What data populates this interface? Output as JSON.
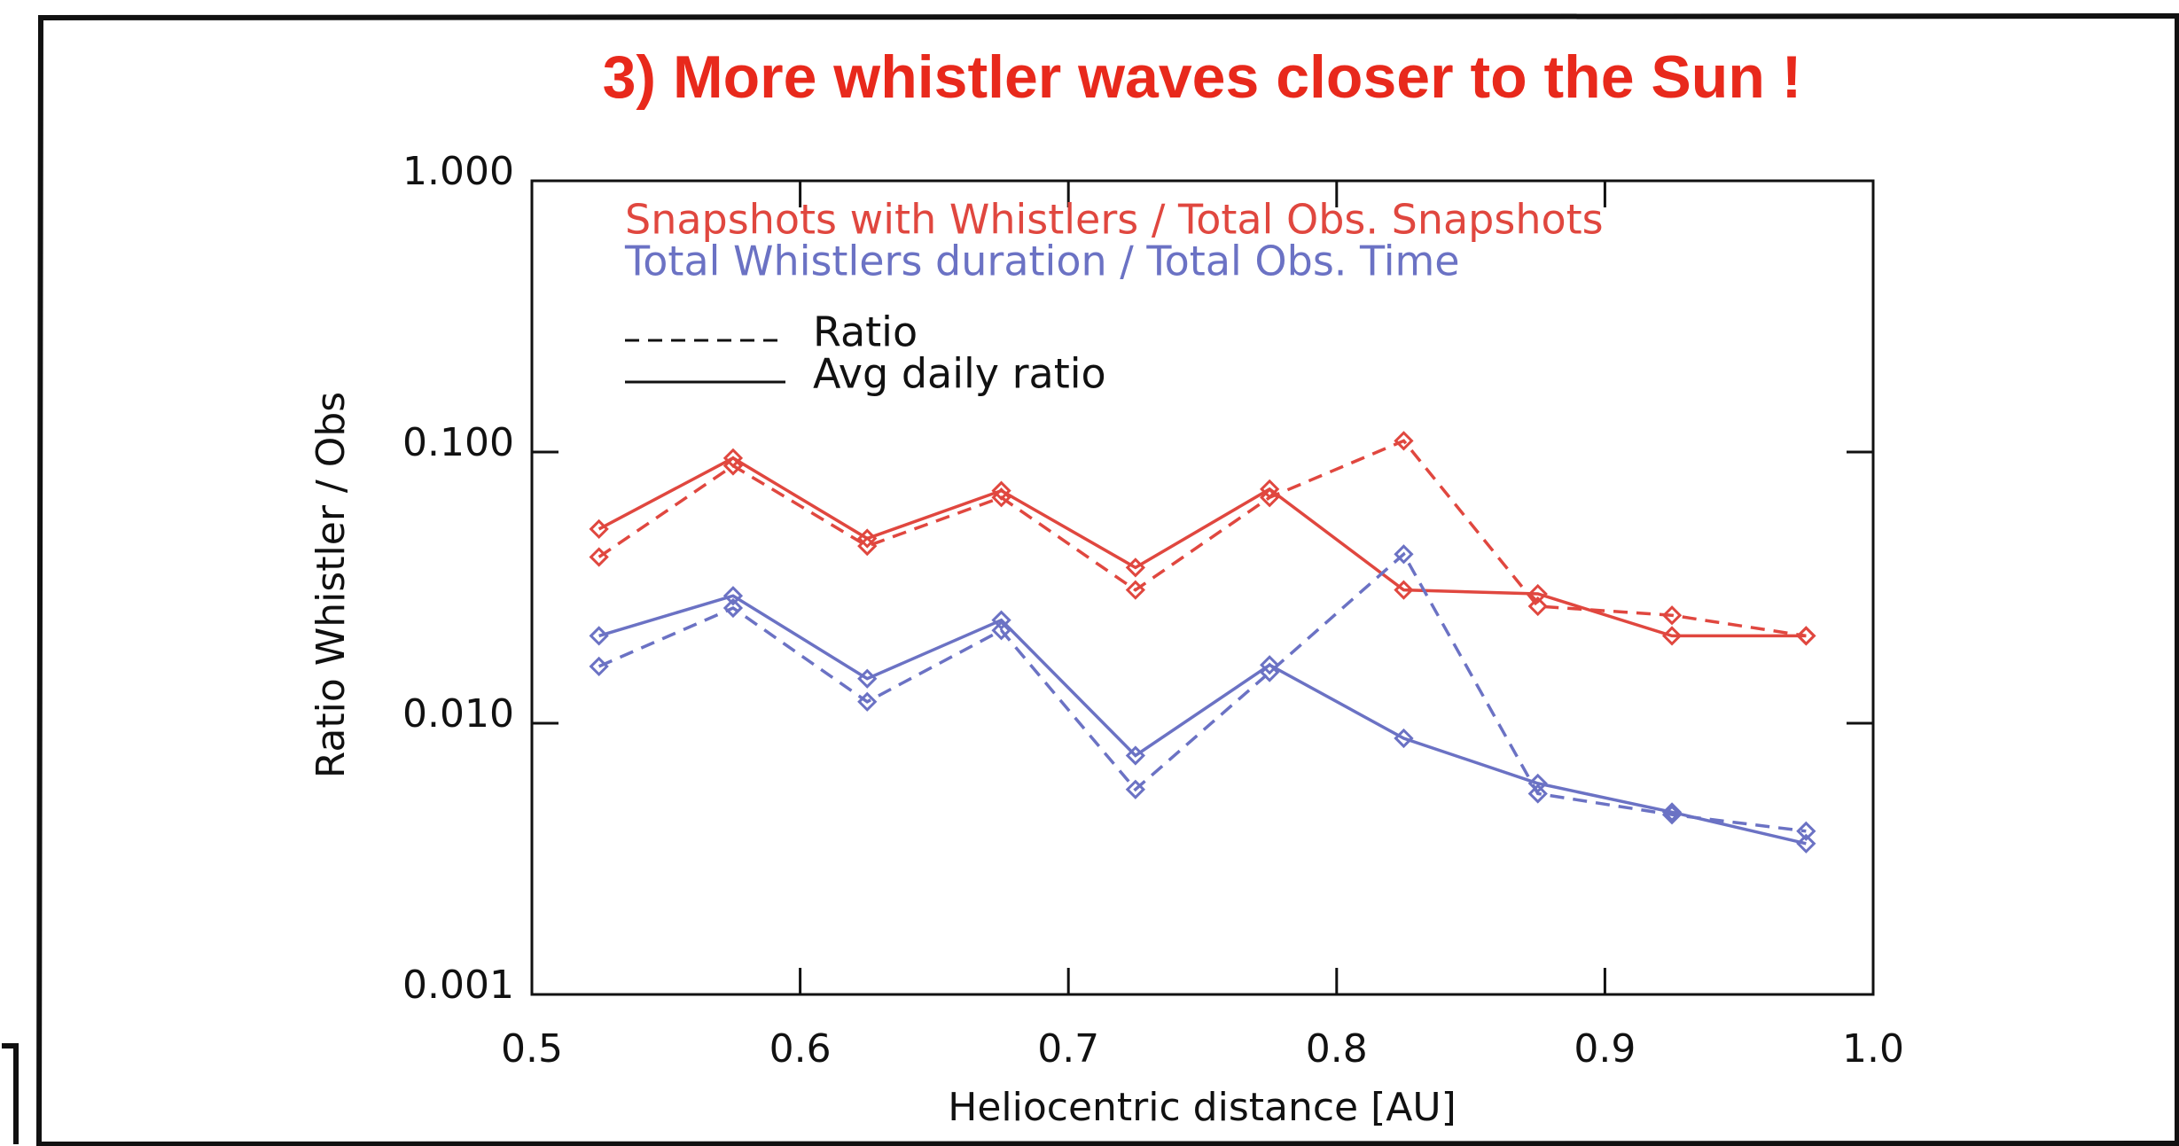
{
  "chart_data": {
    "type": "line",
    "title": "3) More whistler waves closer to the Sun !",
    "x_label": "Heliocentric distance [AU]",
    "y_label": "Ratio Whistler / Obs",
    "x": [
      0.525,
      0.575,
      0.625,
      0.675,
      0.725,
      0.775,
      0.825,
      0.875,
      0.925,
      0.975
    ],
    "series": [
      {
        "color": "#e0473f",
        "dash": false,
        "values": [
          0.052,
          0.095,
          0.048,
          0.072,
          0.0375,
          0.073,
          0.031,
          0.03,
          0.021,
          0.021
        ]
      },
      {
        "color": "#e0473f",
        "dash": true,
        "values": [
          0.041,
          0.089,
          0.045,
          0.068,
          0.031,
          0.068,
          0.11,
          0.027,
          0.025,
          0.021
        ]
      },
      {
        "color": "#6b72c4",
        "dash": false,
        "values": [
          0.021,
          0.0295,
          0.0146,
          0.024,
          0.0076,
          0.0164,
          0.0088,
          0.006,
          0.0047,
          0.0036
        ]
      },
      {
        "color": "#6b72c4",
        "dash": true,
        "values": [
          0.0162,
          0.0266,
          0.012,
          0.022,
          0.0057,
          0.0154,
          0.042,
          0.0055,
          0.0046,
          0.004
        ]
      }
    ],
    "legend_colors": [
      {
        "label": "Snapshots with Whistlers / Total Obs. Snapshots",
        "color": "#e0473f"
      },
      {
        "label": "Total Whistlers duration / Total Obs. Time",
        "color": "#6b72c4"
      }
    ],
    "legend_styles": [
      {
        "label": "Ratio",
        "dash": true
      },
      {
        "label": "Avg daily ratio",
        "dash": false
      }
    ],
    "xlim": [
      0.5,
      1.0
    ],
    "xticks": [
      0.5,
      0.6,
      0.7,
      0.8,
      0.9,
      {
        "value": 1.0,
        "label": "1.0"
      }
    ],
    "ylim": [
      0.001,
      1.0
    ],
    "ylog": true,
    "yticks": [
      {
        "value": 0.001,
        "label": "0.001"
      },
      {
        "value": 0.01,
        "label": "0.010"
      },
      {
        "value": 0.1,
        "label": "0.100"
      },
      {
        "value": 1.0,
        "label": "1.000"
      }
    ]
  }
}
